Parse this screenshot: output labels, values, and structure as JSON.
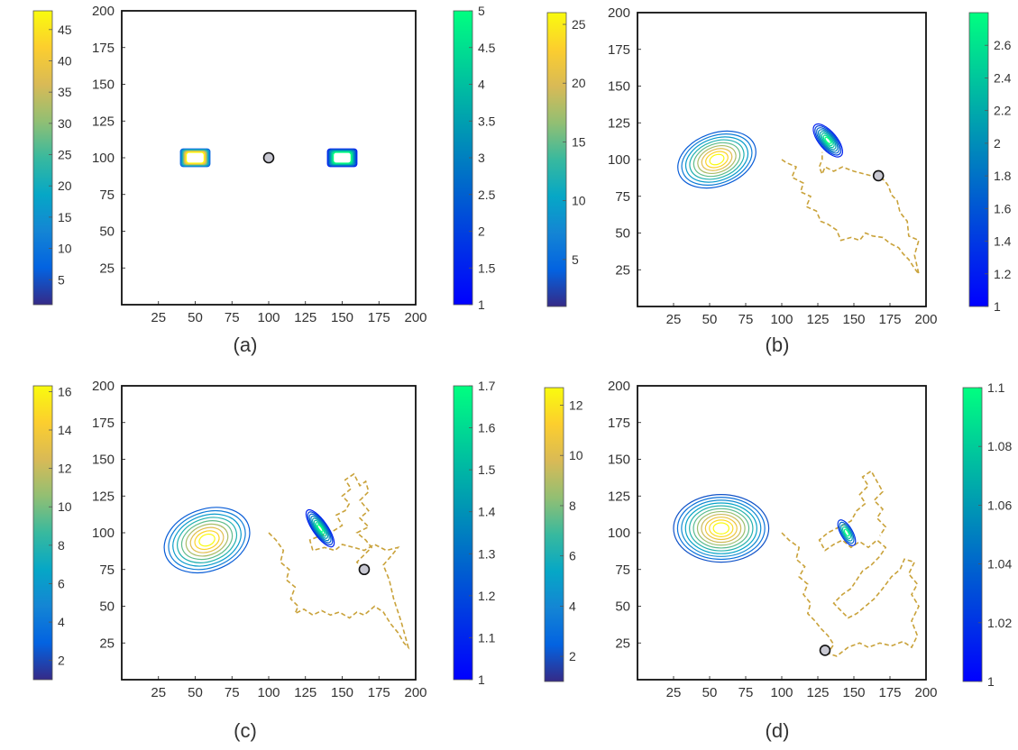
{
  "chart_data": [
    {
      "type": "contour",
      "panel_label": "(a)",
      "xlim": [
        0,
        200
      ],
      "ylim": [
        0,
        200
      ],
      "ticks": [
        25,
        50,
        75,
        100,
        125,
        150,
        175,
        200
      ],
      "left_colorbar": {
        "min": 1,
        "max": 48,
        "colormap": "parula",
        "ticks": [
          5,
          10,
          15,
          20,
          25,
          30,
          35,
          40,
          45
        ]
      },
      "right_colorbar": {
        "min": 1,
        "max": 5,
        "colormap": "winter",
        "ticks": [
          1,
          1.5,
          2,
          2.5,
          3,
          3.5,
          4,
          4.5,
          5
        ]
      },
      "contours_left": [
        {
          "shape": "rect",
          "cx": 50,
          "cy": 100,
          "hw": 10,
          "hh": 6,
          "levels": 8
        }
      ],
      "contours_right": [
        {
          "shape": "rect",
          "cx": 150,
          "cy": 100,
          "hw": 10,
          "hh": 6,
          "levels": 8
        }
      ],
      "agent": {
        "x": 100,
        "y": 100
      },
      "path": []
    },
    {
      "type": "contour",
      "panel_label": "(b)",
      "xlim": [
        0,
        200
      ],
      "ylim": [
        0,
        200
      ],
      "ticks": [
        25,
        50,
        75,
        100,
        125,
        150,
        175,
        200
      ],
      "left_colorbar": {
        "min": 1,
        "max": 26,
        "colormap": "parula",
        "ticks": [
          5,
          10,
          15,
          20,
          25
        ]
      },
      "right_colorbar": {
        "min": 1,
        "max": 2.8,
        "colormap": "winter",
        "ticks": [
          1,
          1.2,
          1.4,
          1.6,
          1.8,
          2,
          2.2,
          2.4,
          2.6
        ]
      },
      "contours_left": [
        {
          "shape": "ellipse",
          "cx": 55,
          "cy": 100,
          "rx": 28,
          "ry": 18,
          "angle": -20,
          "levels": 9
        }
      ],
      "contours_right": [
        {
          "shape": "ellipse",
          "cx": 132,
          "cy": 113,
          "rx": 14,
          "ry": 6,
          "angle": 50,
          "levels": 8
        }
      ],
      "agent": {
        "x": 167,
        "y": 89
      },
      "path": [
        [
          100,
          100
        ],
        [
          103,
          98
        ],
        [
          110,
          95
        ],
        [
          107,
          88
        ],
        [
          115,
          84
        ],
        [
          113,
          78
        ],
        [
          120,
          75
        ],
        [
          117,
          68
        ],
        [
          124,
          65
        ],
        [
          127,
          58
        ],
        [
          132,
          56
        ],
        [
          138,
          52
        ],
        [
          141,
          45
        ],
        [
          148,
          47
        ],
        [
          154,
          45
        ],
        [
          158,
          50
        ],
        [
          163,
          48
        ],
        [
          170,
          47
        ],
        [
          175,
          43
        ],
        [
          181,
          40
        ],
        [
          184,
          36
        ],
        [
          188,
          32
        ],
        [
          192,
          26
        ],
        [
          195,
          22
        ],
        [
          192,
          35
        ],
        [
          195,
          45
        ],
        [
          188,
          48
        ],
        [
          187,
          58
        ],
        [
          182,
          64
        ],
        [
          180,
          72
        ],
        [
          176,
          76
        ],
        [
          174,
          82
        ],
        [
          171,
          86
        ],
        [
          166,
          88
        ],
        [
          158,
          90
        ],
        [
          150,
          92
        ],
        [
          142,
          95
        ],
        [
          136,
          92
        ],
        [
          130,
          95
        ],
        [
          128,
          90
        ],
        [
          126,
          95
        ],
        [
          128,
          100
        ],
        [
          128,
          105
        ]
      ]
    },
    {
      "type": "contour",
      "panel_label": "(c)",
      "xlim": [
        0,
        200
      ],
      "ylim": [
        0,
        200
      ],
      "ticks": [
        25,
        50,
        75,
        100,
        125,
        150,
        175,
        200
      ],
      "left_colorbar": {
        "min": 1,
        "max": 16.3,
        "colormap": "parula",
        "ticks": [
          2,
          4,
          6,
          8,
          10,
          12,
          14,
          16
        ]
      },
      "right_colorbar": {
        "min": 1,
        "max": 1.7,
        "colormap": "winter",
        "ticks": [
          1,
          1.1,
          1.2,
          1.3,
          1.4,
          1.5,
          1.6,
          1.7
        ]
      },
      "contours_left": [
        {
          "shape": "ellipse",
          "cx": 58,
          "cy": 95,
          "rx": 30,
          "ry": 21,
          "angle": -20,
          "levels": 9
        }
      ],
      "contours_right": [
        {
          "shape": "ellipse",
          "cx": 135,
          "cy": 103,
          "rx": 15,
          "ry": 5,
          "angle": 55,
          "levels": 8
        }
      ],
      "agent": {
        "x": 165,
        "y": 75
      },
      "path": [
        [
          100,
          100
        ],
        [
          105,
          95
        ],
        [
          110,
          88
        ],
        [
          108,
          80
        ],
        [
          114,
          75
        ],
        [
          112,
          68
        ],
        [
          118,
          63
        ],
        [
          115,
          55
        ],
        [
          120,
          50
        ],
        [
          118,
          45
        ],
        [
          124,
          48
        ],
        [
          130,
          44
        ],
        [
          136,
          47
        ],
        [
          142,
          44
        ],
        [
          148,
          46
        ],
        [
          155,
          42
        ],
        [
          160,
          46
        ],
        [
          165,
          44
        ],
        [
          172,
          50
        ],
        [
          178,
          46
        ],
        [
          183,
          38
        ],
        [
          188,
          32
        ],
        [
          192,
          25
        ],
        [
          195,
          22
        ],
        [
          190,
          40
        ],
        [
          185,
          55
        ],
        [
          182,
          68
        ],
        [
          178,
          78
        ],
        [
          184,
          85
        ],
        [
          188,
          90
        ],
        [
          180,
          88
        ],
        [
          172,
          92
        ],
        [
          165,
          88
        ],
        [
          158,
          90
        ],
        [
          150,
          92
        ],
        [
          145,
          88
        ],
        [
          138,
          90
        ],
        [
          130,
          88
        ],
        [
          128,
          95
        ],
        [
          135,
          98
        ],
        [
          142,
          100
        ],
        [
          150,
          105
        ],
        [
          146,
          112
        ],
        [
          152,
          115
        ],
        [
          155,
          120
        ],
        [
          150,
          125
        ],
        [
          156,
          130
        ],
        [
          152,
          136
        ],
        [
          158,
          140
        ],
        [
          162,
          132
        ],
        [
          166,
          135
        ],
        [
          168,
          128
        ],
        [
          162,
          122
        ],
        [
          168,
          115
        ],
        [
          162,
          110
        ],
        [
          168,
          104
        ],
        [
          160,
          100
        ],
        [
          166,
          95
        ],
        [
          170,
          90
        ],
        [
          165,
          85
        ],
        [
          160,
          80
        ],
        [
          165,
          75
        ]
      ]
    },
    {
      "type": "contour",
      "panel_label": "(d)",
      "xlim": [
        0,
        200
      ],
      "ylim": [
        0,
        200
      ],
      "ticks": [
        25,
        50,
        75,
        100,
        125,
        150,
        175,
        200
      ],
      "left_colorbar": {
        "min": 1,
        "max": 12.7,
        "colormap": "parula",
        "ticks": [
          2,
          4,
          6,
          8,
          10,
          12
        ]
      },
      "right_colorbar": {
        "min": 1,
        "max": 1.1,
        "colormap": "winter",
        "ticks": [
          1,
          1.02,
          1.04,
          1.06,
          1.08,
          1.1
        ]
      },
      "contours_left": [
        {
          "shape": "ellipse",
          "cx": 58,
          "cy": 103,
          "rx": 33,
          "ry": 23,
          "angle": 0,
          "levels": 11
        }
      ],
      "contours_right": [
        {
          "shape": "ellipse",
          "cx": 145,
          "cy": 100,
          "rx": 10,
          "ry": 4,
          "angle": 60,
          "levels": 5
        }
      ],
      "agent": {
        "x": 130,
        "y": 20
      },
      "path": [
        [
          100,
          100
        ],
        [
          105,
          95
        ],
        [
          112,
          90
        ],
        [
          110,
          82
        ],
        [
          116,
          77
        ],
        [
          112,
          70
        ],
        [
          118,
          65
        ],
        [
          115,
          58
        ],
        [
          120,
          52
        ],
        [
          118,
          45
        ],
        [
          123,
          40
        ],
        [
          127,
          35
        ],
        [
          132,
          30
        ],
        [
          136,
          24
        ],
        [
          132,
          18
        ],
        [
          138,
          16
        ],
        [
          146,
          22
        ],
        [
          154,
          25
        ],
        [
          160,
          22
        ],
        [
          168,
          25
        ],
        [
          176,
          23
        ],
        [
          184,
          26
        ],
        [
          190,
          22
        ],
        [
          194,
          30
        ],
        [
          190,
          40
        ],
        [
          195,
          50
        ],
        [
          190,
          58
        ],
        [
          194,
          65
        ],
        [
          188,
          72
        ],
        [
          192,
          80
        ],
        [
          185,
          82
        ],
        [
          182,
          75
        ],
        [
          176,
          70
        ],
        [
          170,
          62
        ],
        [
          164,
          55
        ],
        [
          158,
          50
        ],
        [
          152,
          45
        ],
        [
          146,
          42
        ],
        [
          140,
          48
        ],
        [
          136,
          52
        ],
        [
          142,
          58
        ],
        [
          148,
          62
        ],
        [
          152,
          68
        ],
        [
          156,
          74
        ],
        [
          162,
          78
        ],
        [
          168,
          84
        ],
        [
          172,
          90
        ],
        [
          166,
          95
        ],
        [
          160,
          90
        ],
        [
          154,
          94
        ],
        [
          148,
          90
        ],
        [
          142,
          95
        ],
        [
          136,
          92
        ],
        [
          130,
          88
        ],
        [
          126,
          95
        ],
        [
          132,
          100
        ],
        [
          140,
          104
        ],
        [
          148,
          108
        ],
        [
          152,
          115
        ],
        [
          158,
          120
        ],
        [
          154,
          126
        ],
        [
          160,
          132
        ],
        [
          156,
          138
        ],
        [
          162,
          142
        ],
        [
          166,
          135
        ],
        [
          170,
          128
        ],
        [
          164,
          122
        ],
        [
          170,
          116
        ],
        [
          166,
          110
        ],
        [
          172,
          104
        ],
        [
          168,
          98
        ]
      ]
    }
  ]
}
